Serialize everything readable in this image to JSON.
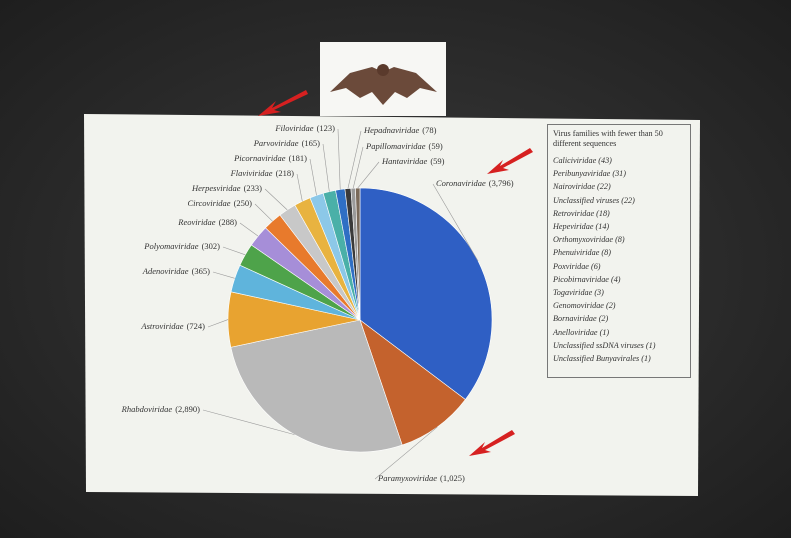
{
  "chart_data": {
    "type": "pie",
    "categories": [
      "Coronaviridae",
      "Paramyxoviridae",
      "Rhabdoviridae",
      "Astroviridae",
      "Adenoviridae",
      "Polyomaviridae",
      "Reoviridae",
      "Circoviridae",
      "Herpesviridae",
      "Flaviviridae",
      "Picornaviridae",
      "Parvoviridae",
      "Filoviridae",
      "Hepadnaviridae",
      "Papillomaviridae",
      "Hantaviridae"
    ],
    "values": [
      3796,
      1025,
      2890,
      724,
      365,
      302,
      288,
      250,
      233,
      218,
      181,
      165,
      123,
      78,
      59,
      59
    ],
    "value_labels": [
      "(3,796)",
      "(1,025)",
      "(2,890)",
      "(724)",
      "(365)",
      "(302)",
      "(288)",
      "(250)",
      "(233)",
      "(218)",
      "(181)",
      "(165)",
      "(123)",
      "(78)",
      "(59)",
      "(59)"
    ],
    "colors": [
      "#2f5fc4",
      "#c4622d",
      "#b9b9b9",
      "#e8a330",
      "#5fb4dc",
      "#4ea34a",
      "#a68ed8",
      "#e87a2c",
      "#c8c8c8",
      "#e8b340",
      "#8cc8e8",
      "#4ab0a8",
      "#2f6fc4",
      "#3a3a3a",
      "#9a9a9a",
      "#7a6a5a"
    ]
  },
  "small_families": {
    "title": "Virus families with fewer than 50 different sequences",
    "items": [
      "Caliciviridae (43)",
      "Peribunyaviridae (31)",
      "Nairoviridae (22)",
      "Unclassified viruses (22)",
      "Retroviridae (18)",
      "Hepeviridae (14)",
      "Orthomyxoviridae (8)",
      "Phenuiviridae (8)",
      "Poxviridae (6)",
      "Picobirnaviridae (4)",
      "Togaviridae (3)",
      "Genomoviridae (2)",
      "Bornaviridae (2)",
      "Anelloviridae (1)",
      "Unclassified ssDNA viruses (1)",
      "Unclassified Bunyavirales (1)"
    ]
  }
}
